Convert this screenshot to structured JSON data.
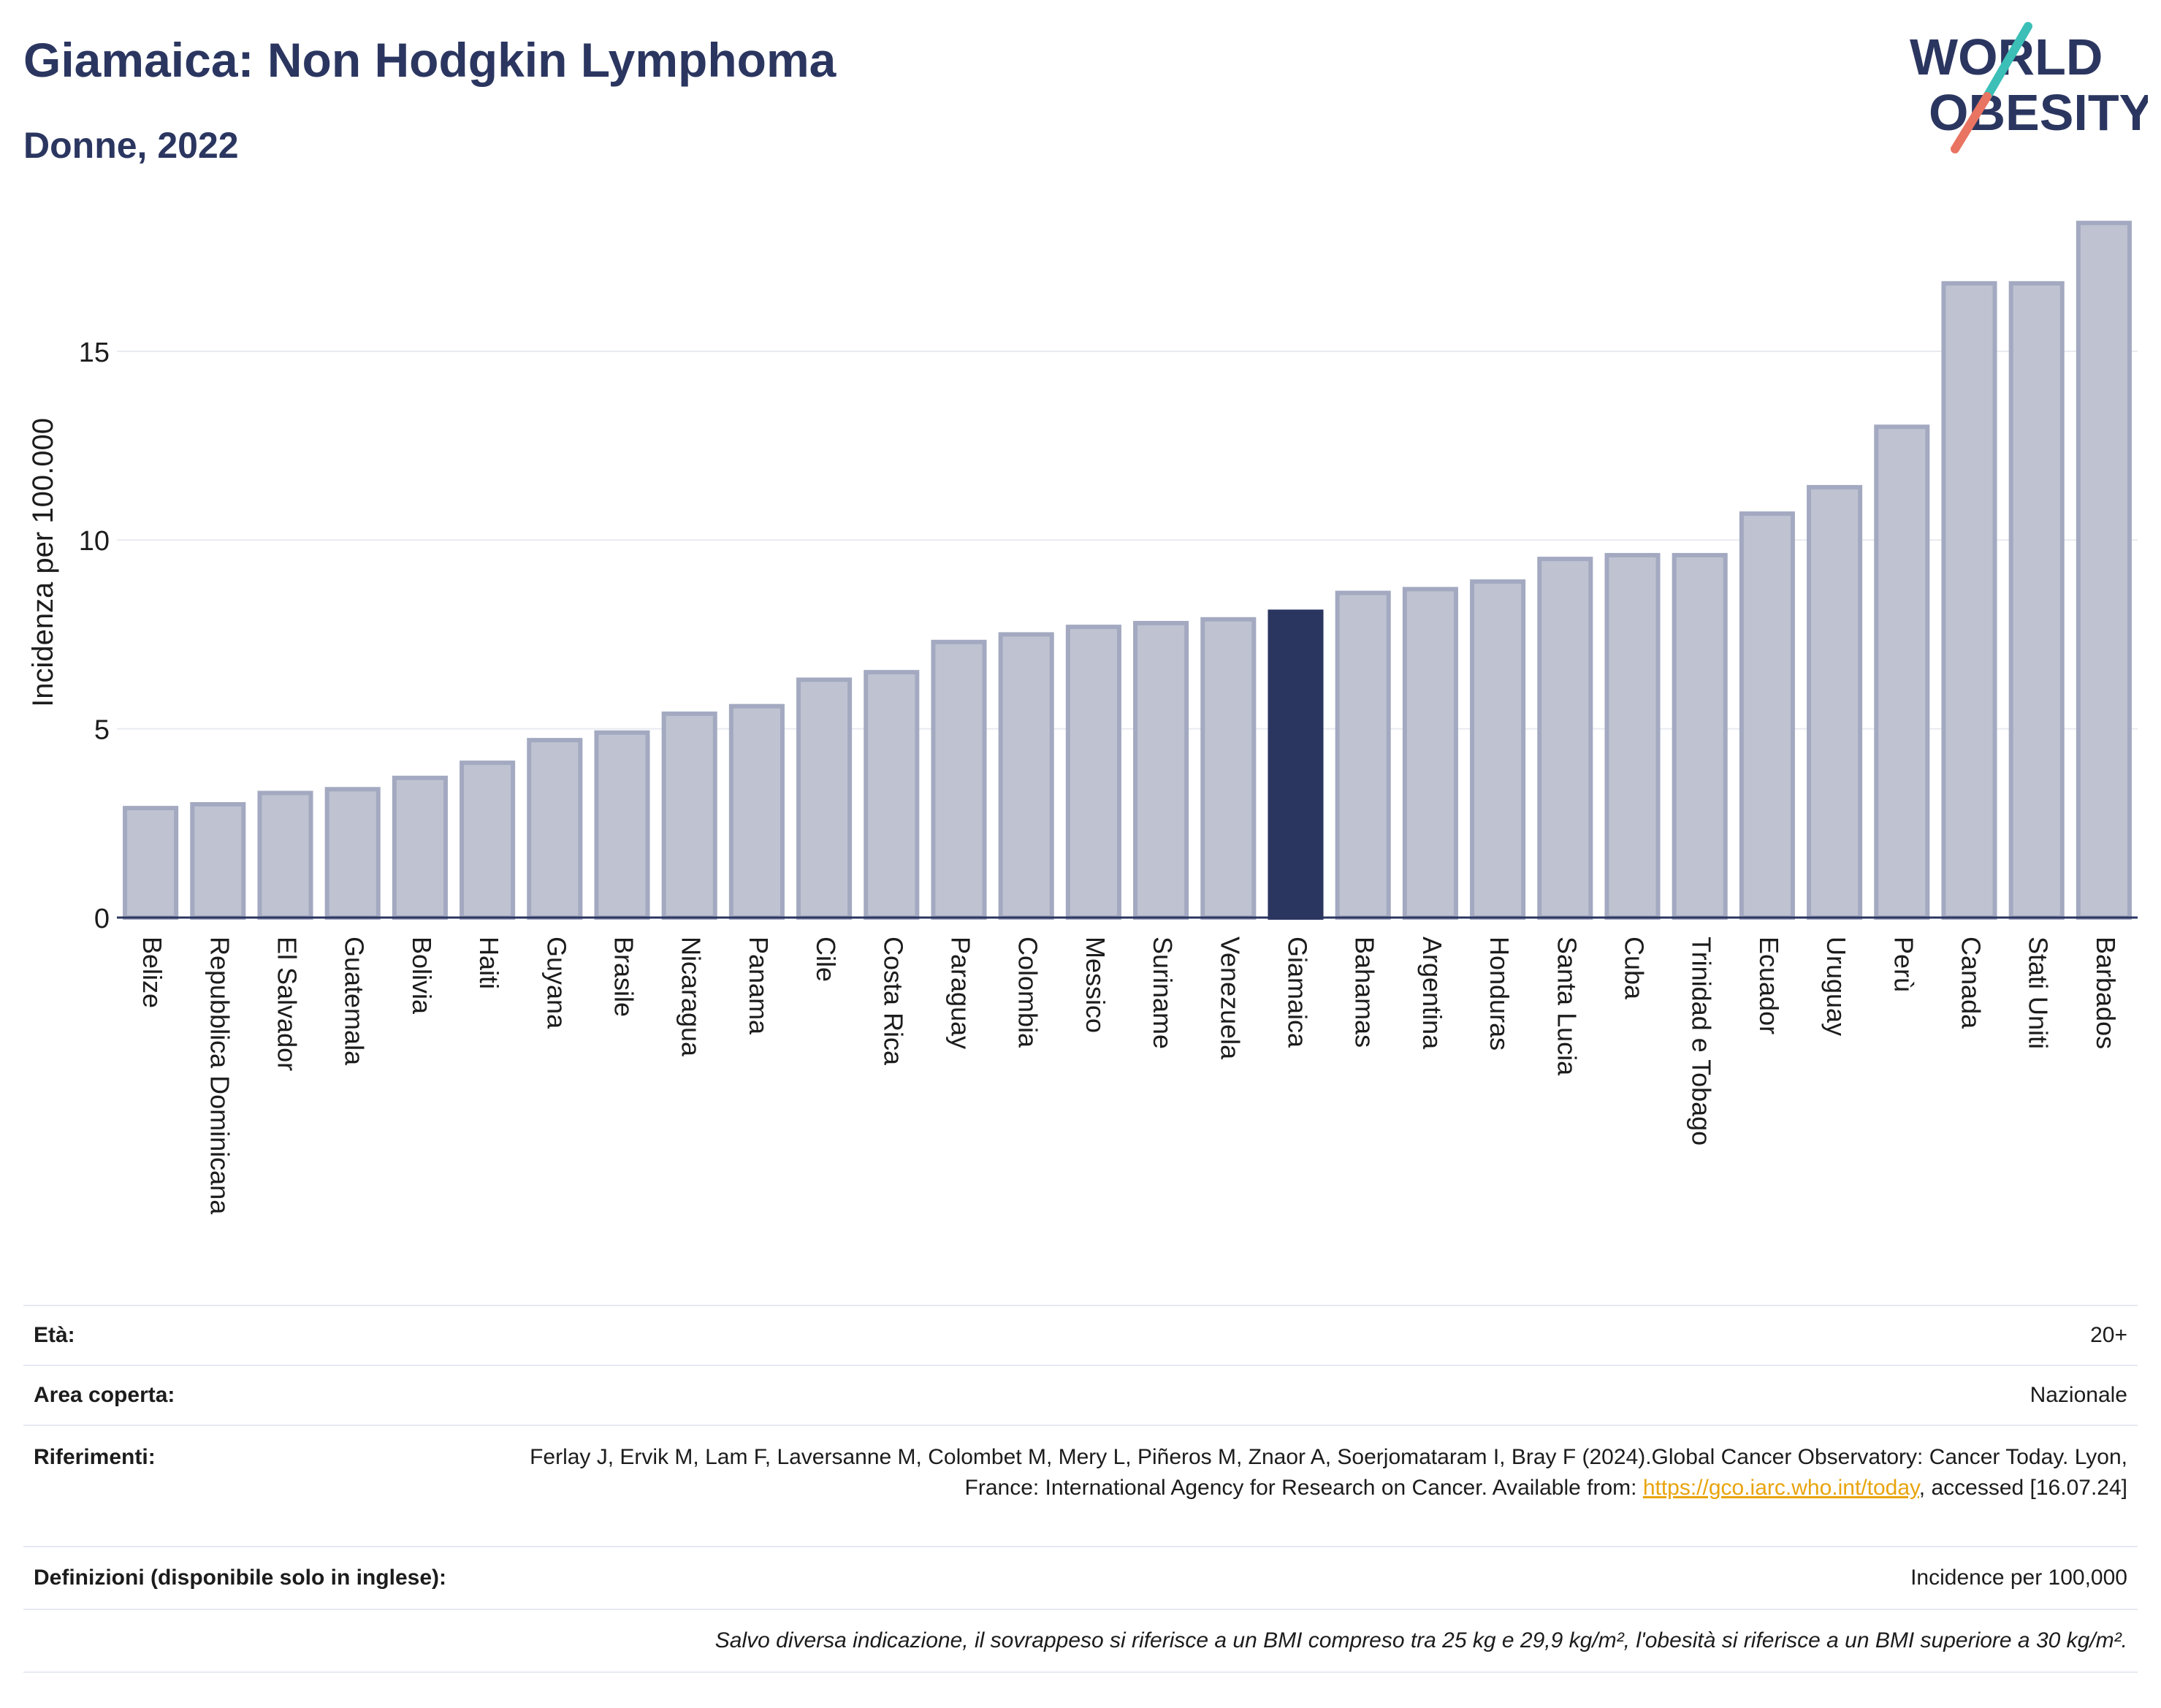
{
  "header": {
    "title": "Giamaica: Non Hodgkin Lymphoma",
    "subtitle": "Donne, 2022"
  },
  "logo": {
    "line1": "WORLD",
    "line2": "OBESITY"
  },
  "colors": {
    "bar": "#bfc3d1",
    "bar_stroke": "#a3a9c0",
    "highlight": "#2b3660",
    "grid": "#e8eaf0",
    "axis": "#2b3660",
    "logo_teal": "#3bbfb7",
    "logo_coral": "#e87461",
    "link": "#e8a40c"
  },
  "chart_data": {
    "type": "bar",
    "ylabel": "Incidenza per 100.000",
    "ylim": [
      0,
      18.5
    ],
    "yticks": [
      0,
      5,
      10,
      15
    ],
    "highlight": "Giamaica",
    "categories": [
      "Belize",
      "Repubblica Dominicana",
      "El Salvador",
      "Guatemala",
      "Bolivia",
      "Haiti",
      "Guyana",
      "Brasile",
      "Nicaragua",
      "Panama",
      "Cile",
      "Costa Rica",
      "Paraguay",
      "Colombia",
      "Messico",
      "Suriname",
      "Venezuela",
      "Giamaica",
      "Bahamas",
      "Argentina",
      "Honduras",
      "Santa Lucia",
      "Cuba",
      "Trinidad e Tobago",
      "Ecuador",
      "Uruguay",
      "Perù",
      "Canada",
      "Stati Uniti",
      "Barbados"
    ],
    "values": [
      2.9,
      3.0,
      3.3,
      3.4,
      3.7,
      4.1,
      4.7,
      4.9,
      5.4,
      5.6,
      6.3,
      6.5,
      7.3,
      7.5,
      7.7,
      7.8,
      7.9,
      8.1,
      8.6,
      8.7,
      8.9,
      9.5,
      9.6,
      9.6,
      10.7,
      11.4,
      13.0,
      16.8,
      16.8,
      18.4
    ]
  },
  "meta": {
    "age_label": "Età:",
    "age_value": "20+",
    "area_label": "Area coperta:",
    "area_value": "Nazionale",
    "ref_label": "Riferimenti:",
    "ref_text1": "Ferlay J, Ervik M, Lam F, Laversanne M, Colombet M, Mery L, Piñeros M, Znaor A, Soerjomataram I, Bray F (2024).Global Cancer Observatory: Cancer Today. Lyon, France: International Agency for Research on Cancer. Available from: ",
    "ref_link": "https://gco.iarc.who.int/today",
    "ref_text2": ", accessed [16.07.24]",
    "def_label": "Definizioni (disponibile solo in inglese):",
    "def_value": "Incidence per 100,000",
    "note": "Salvo diversa indicazione, il sovrappeso si riferisce a un BMI compreso tra 25 kg e 29,9 kg/m², l'obesità si riferisce a un BMI superiore a 30 kg/m²."
  }
}
